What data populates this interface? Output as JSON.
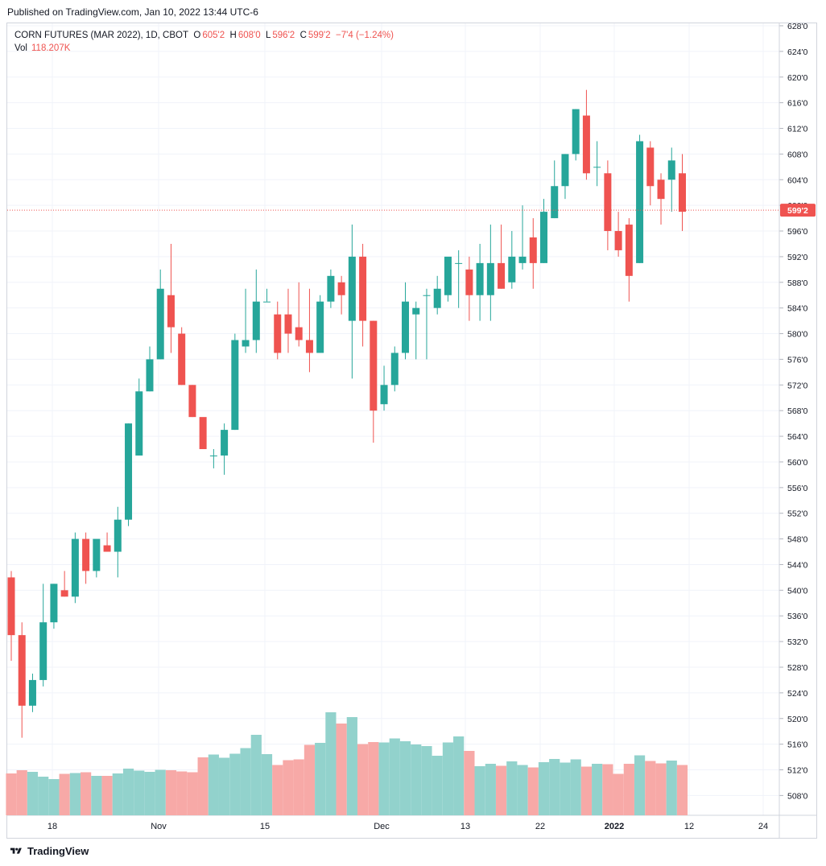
{
  "header": {
    "published": "Published on TradingView.com, Jan 10, 2022 13:44 UTC-6"
  },
  "legend": {
    "symbol": "CORN FUTURES (MAR 2022), 1D, CBOT",
    "open_label": "O",
    "open": "605'2",
    "high_label": "H",
    "high": "608'0",
    "low_label": "L",
    "low": "596'2",
    "close_label": "C",
    "close": "599'2",
    "change": "−7'4 (−1.24%)",
    "vol_label": "Vol",
    "vol_value": "118.207K"
  },
  "footer": {
    "brand": "TradingView"
  },
  "colors": {
    "up": "#26a69a",
    "down": "#ef5350",
    "up_volume": "#92d2cc",
    "down_volume": "#f7a9a7",
    "grid": "#f0f3fa",
    "price_line": "#ef5350"
  },
  "chart_data": {
    "type": "candlestick",
    "ylim": [
      505,
      630
    ],
    "y_ticks": [
      "628'0",
      "624'0",
      "620'0",
      "616'0",
      "612'0",
      "608'0",
      "604'0",
      "600'0",
      "596'0",
      "592'0",
      "588'0",
      "584'0",
      "580'0",
      "576'0",
      "572'0",
      "568'0",
      "564'0",
      "560'0",
      "556'0",
      "552'0",
      "548'0",
      "544'0",
      "540'0",
      "536'0",
      "532'0",
      "528'0",
      "524'0",
      "520'0",
      "516'0",
      "512'0",
      "508'0"
    ],
    "x_ticks": [
      "18",
      "Nov",
      "15",
      "Dec",
      "13",
      "22",
      "2022",
      "12",
      "24"
    ],
    "last_price_label": "599'2",
    "last_price": 599.25,
    "candles": [
      [
        542,
        543,
        529,
        533
      ],
      [
        533,
        535,
        517,
        522
      ],
      [
        522,
        527,
        521,
        526
      ],
      [
        526,
        541,
        525,
        535
      ],
      [
        535,
        541,
        534,
        541
      ],
      [
        540,
        543,
        539,
        539
      ],
      [
        539,
        549,
        538,
        548
      ],
      [
        548,
        549,
        541,
        543
      ],
      [
        543,
        547,
        542,
        548
      ],
      [
        547,
        549,
        546,
        546
      ],
      [
        546,
        553,
        542,
        551
      ],
      [
        551,
        566,
        550,
        566
      ],
      [
        561,
        573,
        561,
        571
      ],
      [
        571,
        578,
        571,
        576
      ],
      [
        576,
        590,
        576,
        587
      ],
      [
        586,
        594,
        577,
        581
      ],
      [
        580,
        581,
        572,
        572
      ],
      [
        572,
        572,
        567,
        567
      ],
      [
        567,
        566,
        562,
        562
      ],
      [
        561,
        562,
        559,
        561
      ],
      [
        561,
        566,
        558,
        565
      ],
      [
        565,
        580,
        565,
        579
      ],
      [
        578,
        587,
        577,
        579
      ],
      [
        579,
        590,
        577,
        585
      ],
      [
        585,
        587,
        585,
        585
      ],
      [
        583,
        585,
        576,
        577
      ],
      [
        583,
        587,
        577,
        580
      ],
      [
        581,
        588,
        578,
        579
      ],
      [
        579,
        587,
        574,
        577
      ],
      [
        577,
        586,
        577,
        585
      ],
      [
        585,
        590,
        584,
        589
      ],
      [
        588,
        589,
        583,
        586
      ],
      [
        582,
        597,
        573,
        592
      ],
      [
        592,
        594,
        578,
        582
      ],
      [
        582,
        582,
        563,
        568
      ],
      [
        569,
        575,
        568,
        572
      ],
      [
        572,
        578,
        571,
        577
      ],
      [
        577,
        588,
        576,
        585
      ],
      [
        583,
        585,
        576,
        584
      ],
      [
        586,
        587,
        576,
        586
      ],
      [
        584,
        589,
        583,
        587
      ],
      [
        586,
        591,
        585,
        592
      ],
      [
        591,
        593,
        584,
        591
      ],
      [
        590,
        592,
        582,
        586
      ],
      [
        586,
        594,
        582,
        591
      ],
      [
        586,
        597,
        582,
        591
      ],
      [
        591,
        597,
        587,
        587
      ],
      [
        588,
        596,
        587,
        592
      ],
      [
        591,
        600,
        590,
        592
      ],
      [
        595,
        598,
        587,
        591
      ],
      [
        591,
        601,
        591,
        599
      ],
      [
        598,
        607,
        598,
        603
      ],
      [
        603,
        608,
        601,
        608
      ],
      [
        608,
        615,
        607,
        615
      ],
      [
        614,
        618,
        604,
        605
      ],
      [
        606,
        610,
        603,
        606
      ],
      [
        605,
        607,
        593,
        596
      ],
      [
        596,
        599,
        592,
        593
      ],
      [
        597,
        598,
        585,
        589
      ],
      [
        591,
        611,
        591,
        610
      ],
      [
        609,
        610,
        600,
        603
      ],
      [
        604,
        605,
        597,
        601
      ],
      [
        604,
        609,
        599,
        607
      ],
      [
        605,
        608,
        596,
        599
      ]
    ],
    "volume_values": [
      520,
      560,
      540,
      480,
      450,
      515,
      525,
      535,
      490,
      490,
      520,
      580,
      555,
      540,
      565,
      560,
      545,
      535,
      720,
      755,
      715,
      765,
      835,
      1000,
      760,
      625,
      685,
      695,
      875,
      900,
      1280,
      1140,
      1220,
      885,
      910,
      905,
      955,
      920,
      880,
      860,
      740,
      905,
      980,
      800,
      610,
      640,
      615,
      670,
      625,
      595,
      660,
      700,
      655,
      695,
      605,
      640,
      635,
      515,
      640,
      745,
      675,
      645,
      680,
      625
    ]
  }
}
